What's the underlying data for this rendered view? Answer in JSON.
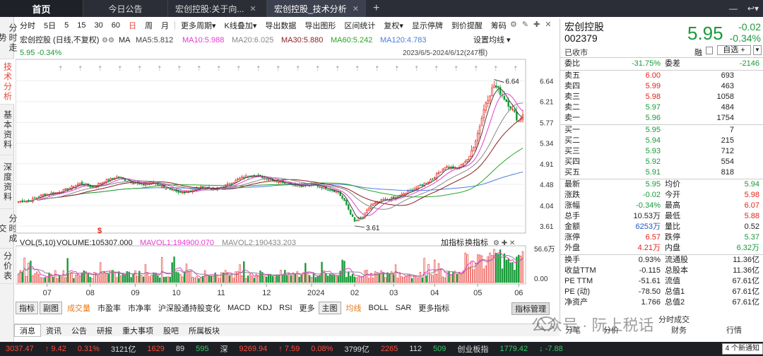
{
  "tabs": {
    "home": "首页",
    "t1": "今日公告",
    "t2": "宏创控股:关于向...",
    "t3": "宏创控股_技术分析",
    "add": "+"
  },
  "leftnav": [
    "分时走势",
    "技术分析",
    "基本资料",
    "深度资料",
    "分时成交",
    "分价表"
  ],
  "toolbar": {
    "items": [
      "分时",
      "5日",
      "5",
      "15",
      "30",
      "60",
      "日",
      "周",
      "月",
      "更多周期▾",
      "K线叠加▾",
      "导出数据",
      "导出图形",
      "区间统计",
      "复权▾",
      "显示停牌",
      "到价提醒",
      "筹码"
    ]
  },
  "chart_header": {
    "name": "宏创控股 (日线,不复权)",
    "ma_label": "MA",
    "ma5": "MA5:5.812",
    "ma10": "MA10:5.988",
    "ma20": "MA20:6.025",
    "ma30": "MA30:5.880",
    "ma60": "MA60:5.242",
    "ma120": "MA120:4.783",
    "settings": "设置均线 ▾",
    "price_line": "5.95 -0.34%",
    "range": "2023/6/5-2024/6/12(247根)"
  },
  "volume_header": {
    "label": "VOL(5,10)",
    "volume": "VOLUME:105307.000",
    "mavol1": "MAVOL1:194900.070",
    "mavol2": "MAVOL2:190433.203",
    "add_ind": "加指标",
    "switch_ind": "换指标"
  },
  "colors": {
    "up": "#e5231b",
    "down": "#1a9a3a",
    "ma5": "#444444",
    "ma10": "#e63cd0",
    "ma20": "#888888",
    "ma30": "#8a1f1f",
    "ma60": "#2aa52a",
    "ma120": "#4a7de0"
  },
  "chart_data": {
    "type": "line",
    "title": "宏创控股 (日线,不复权)",
    "y_ticks": [
      "6.64",
      "6.21",
      "5.77",
      "5.34",
      "4.91",
      "4.48",
      "4.04",
      "3.61"
    ],
    "ylim": [
      3.61,
      6.64
    ],
    "x_ticks": [
      "07",
      "08",
      "09",
      "10",
      "11",
      "12",
      "2024",
      "02",
      "03",
      "04",
      "05",
      "06"
    ],
    "annotations": [
      {
        "label": "6.64",
        "type": "high"
      },
      {
        "label": "3.61",
        "type": "low"
      }
    ],
    "volume_ticks": [
      "56.6万",
      "0.00"
    ],
    "series": [
      {
        "name": "MA5",
        "last": 5.812
      },
      {
        "name": "MA10",
        "last": 5.988
      },
      {
        "name": "MA20",
        "last": 6.025
      },
      {
        "name": "MA30",
        "last": 5.88
      },
      {
        "name": "MA60",
        "last": 5.242
      },
      {
        "name": "MA120",
        "last": 4.783
      }
    ],
    "close_profile": [
      [
        0,
        4.12
      ],
      [
        6,
        4.15
      ],
      [
        12,
        4.26
      ],
      [
        18,
        4.3
      ],
      [
        24,
        4.38
      ],
      [
        30,
        4.5
      ],
      [
        36,
        4.42
      ],
      [
        42,
        4.55
      ],
      [
        48,
        4.63
      ],
      [
        54,
        4.55
      ],
      [
        60,
        4.47
      ],
      [
        66,
        4.52
      ],
      [
        72,
        4.4
      ],
      [
        78,
        4.3
      ],
      [
        84,
        4.35
      ],
      [
        90,
        4.42
      ],
      [
        96,
        4.38
      ],
      [
        102,
        4.47
      ],
      [
        108,
        4.6
      ],
      [
        114,
        4.68
      ],
      [
        120,
        4.62
      ],
      [
        126,
        4.55
      ],
      [
        132,
        4.5
      ],
      [
        138,
        4.45
      ],
      [
        144,
        4.47
      ],
      [
        150,
        4.4
      ],
      [
        156,
        4.32
      ],
      [
        160,
        4.05
      ],
      [
        164,
        3.7
      ],
      [
        168,
        3.8
      ],
      [
        172,
        4.05
      ],
      [
        178,
        4.15
      ],
      [
        184,
        4.2
      ],
      [
        190,
        4.32
      ],
      [
        196,
        4.45
      ],
      [
        202,
        4.6
      ],
      [
        208,
        4.85
      ],
      [
        214,
        4.8
      ],
      [
        220,
        5.05
      ],
      [
        224,
        5.55
      ],
      [
        228,
        6.2
      ],
      [
        232,
        6.55
      ],
      [
        236,
        6.35
      ],
      [
        240,
        6.1
      ],
      [
        244,
        5.8
      ],
      [
        246,
        5.95
      ]
    ]
  },
  "quote": {
    "name": "宏创控股",
    "code": "002379",
    "status": "已收市",
    "price": "5.95",
    "change": "-0.02",
    "pct": "-0.34%",
    "rong": "融",
    "zixuan": "自选 +",
    "weibi_label": "委比",
    "weibi": "-31.75%",
    "weicha_label": "委差",
    "weicha": "-2146",
    "sells": [
      {
        "label": "卖五",
        "price": "6.00",
        "vol": "693"
      },
      {
        "label": "卖四",
        "price": "5.99",
        "vol": "463"
      },
      {
        "label": "卖三",
        "price": "5.98",
        "vol": "1058"
      },
      {
        "label": "卖二",
        "price": "5.97",
        "vol": "484"
      },
      {
        "label": "卖一",
        "price": "5.96",
        "vol": "1754"
      }
    ],
    "buys": [
      {
        "label": "买一",
        "price": "5.95",
        "vol": "7"
      },
      {
        "label": "买二",
        "price": "5.94",
        "vol": "215"
      },
      {
        "label": "买三",
        "price": "5.93",
        "vol": "712"
      },
      {
        "label": "买四",
        "price": "5.92",
        "vol": "554"
      },
      {
        "label": "买五",
        "price": "5.91",
        "vol": "818"
      }
    ],
    "stats": [
      {
        "l1": "最新",
        "v1": "5.95",
        "l2": "均价",
        "v2": "5.94"
      },
      {
        "l1": "涨跌",
        "v1": "-0.02",
        "l2": "今开",
        "v2": "5.98"
      },
      {
        "l1": "涨幅",
        "v1": "-0.34%",
        "l2": "最高",
        "v2": "6.07"
      },
      {
        "l1": "总手",
        "v1": "10.53万",
        "l2": "最低",
        "v2": "5.88"
      },
      {
        "l1": "金额",
        "v1": "6253万",
        "l2": "量比",
        "v2": "0.52"
      },
      {
        "l1": "涨停",
        "v1": "6.57",
        "l2": "跌停",
        "v2": "5.37"
      },
      {
        "l1": "外盘",
        "v1": "4.21万",
        "l2": "内盘",
        "v2": "6.32万"
      }
    ],
    "fin": [
      {
        "l1": "换手",
        "v1": "0.93%",
        "l2": "流通股",
        "v2": "11.36亿"
      },
      {
        "l1": "收益TTM",
        "v1": "-0.115",
        "l2": "总股本",
        "v2": "11.36亿"
      },
      {
        "l1": "PE TTM",
        "v1": "-51.61",
        "l2": "流值",
        "v2": "67.61亿"
      },
      {
        "l1": "PE (动)",
        "v1": "-78.50",
        "l2": "总值1",
        "v2": "67.61亿"
      },
      {
        "l1": "净资产",
        "v1": "1.766",
        "l2": "总值2",
        "v2": "67.61亿"
      }
    ]
  },
  "indbar": [
    "指标",
    "副图",
    "成交量",
    "市盈率",
    "市净率",
    "沪深股通持股变化",
    "MACD",
    "KDJ",
    "RSI",
    "更多",
    "主图",
    "均线",
    "BOLL",
    "SAR",
    "更多指标"
  ],
  "indbar_mgr": "指标管理",
  "bottomtabs": [
    "消息",
    "资讯",
    "公告",
    "研报",
    "重大事项",
    "股吧",
    "所属板块"
  ],
  "rt_bottom": {
    "c1": "分笔",
    "c2": "分价",
    "c3": "财务",
    "c4": "行情",
    "c5": "分时成交"
  },
  "statusbar": {
    "sh_val": "3037.47",
    "sh_chg": "↑ 9.42",
    "sh_pct": "0.31%",
    "sh_amt": "3121亿",
    "sh_up": "1629",
    "sh_flat": "89",
    "sh_down": "595",
    "sz_label": "深",
    "sz_val": "9269.94",
    "sz_chg": "↑ 7.59",
    "sz_pct": "0.08%",
    "sz_amt": "3799亿",
    "sz_up": "2265",
    "sz_flat": "112",
    "sz_down": "509",
    "cy_label": "创业板指",
    "cy_val": "1779.42",
    "cy_chg": "↓ -7.88",
    "notice": "4 个新通知"
  },
  "watermark": "公众号 · 阮上税话"
}
